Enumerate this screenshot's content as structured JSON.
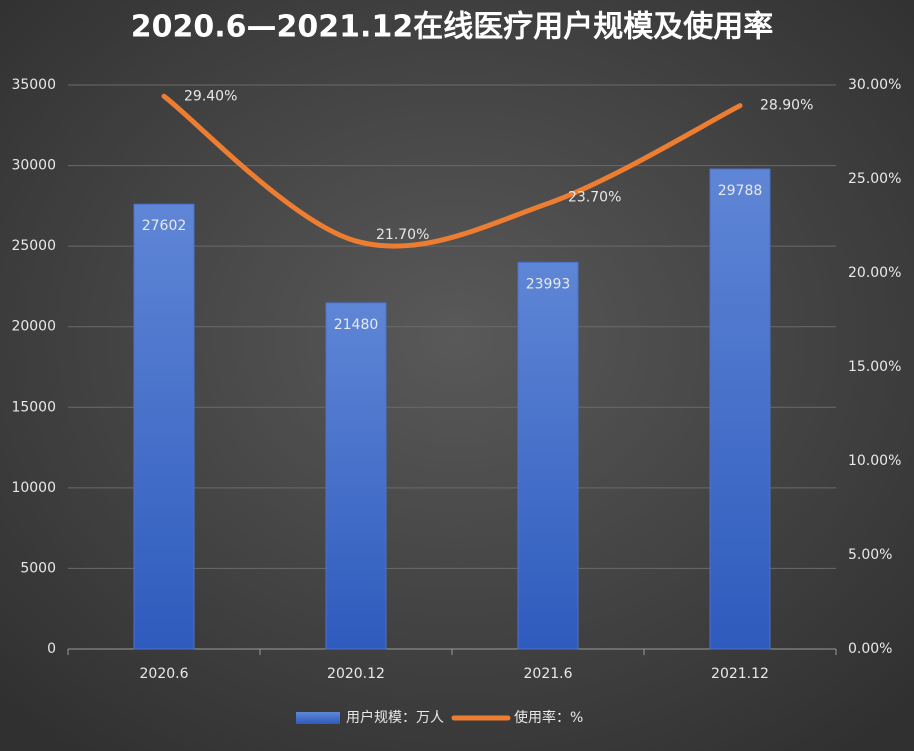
{
  "chart_data": {
    "type": "bar",
    "title": "2020.6—2021.12在线医疗用户规模及使用率",
    "categories": [
      "2020.6",
      "2020.12",
      "2021.6",
      "2021.12"
    ],
    "series": [
      {
        "name": "用户规模：万人",
        "type": "bar",
        "color": "#4a72cc",
        "values": [
          27602,
          21480,
          23993,
          29788
        ]
      },
      {
        "name": "使用率：%",
        "type": "line",
        "axis": "y2",
        "color": "#ed7d31",
        "values": [
          29.4,
          21.7,
          23.7,
          28.9
        ],
        "value_labels": [
          "29.40%",
          "21.70%",
          "23.70%",
          "28.90%"
        ]
      }
    ],
    "ylim": [
      0,
      35000
    ],
    "yticks": [
      0,
      5000,
      10000,
      15000,
      20000,
      25000,
      30000,
      35000
    ],
    "y2lim": [
      0,
      30
    ],
    "y2ticks": [
      {
        "value": 0,
        "label": "0.00%"
      },
      {
        "value": 5,
        "label": "5.00%"
      },
      {
        "value": 10,
        "label": "10.00%"
      },
      {
        "value": 15,
        "label": "15.00%"
      },
      {
        "value": 20,
        "label": "20.00%"
      },
      {
        "value": 25,
        "label": "25.00%"
      },
      {
        "value": 30,
        "label": "30.00%"
      }
    ],
    "grid": true,
    "legend": "bottom"
  }
}
